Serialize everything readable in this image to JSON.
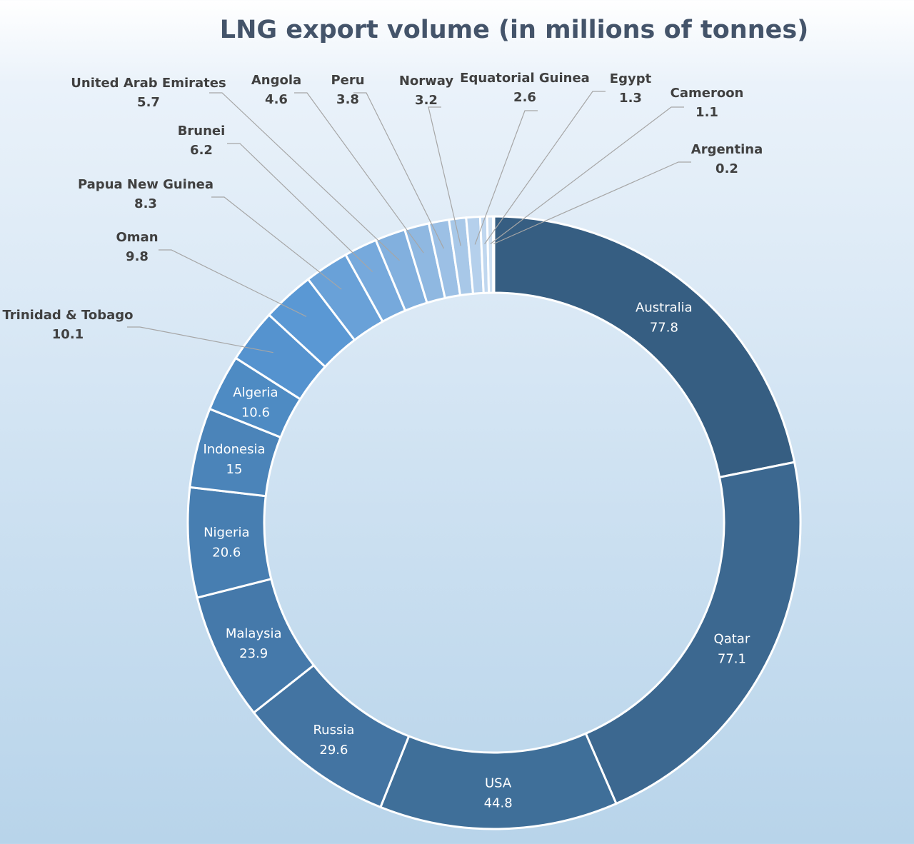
{
  "chart_data": {
    "type": "donut",
    "title": "LNG export volume (in millions of tonnes)",
    "categories": [
      "Australia",
      "Qatar",
      "USA",
      "Russia",
      "Malaysia",
      "Nigeria",
      "Indonesia",
      "Algeria",
      "Trinidad & Tobago",
      "Oman",
      "Papua New Guinea",
      "Brunei",
      "United Arab Emirates",
      "Angola",
      "Peru",
      "Norway",
      "Equatorial Guinea",
      "Egypt",
      "Cameroon",
      "Argentina"
    ],
    "values": [
      77.8,
      77.1,
      44.8,
      29.6,
      23.9,
      20.6,
      15,
      10.6,
      10.1,
      9.8,
      8.3,
      6.2,
      5.7,
      4.6,
      3.8,
      3.2,
      2.6,
      1.3,
      1.1,
      0.2
    ],
    "value_labels": [
      "77.8",
      "77.1",
      "44.8",
      "29.6",
      "23.9",
      "20.6",
      "15",
      "10.6",
      "10.1",
      "9.8",
      "8.3",
      "6.2",
      "5.7",
      "4.6",
      "3.8",
      "3.2",
      "2.6",
      "1.3",
      "1.1",
      "0.2"
    ],
    "colors": [
      "#365e82",
      "#3c6890",
      "#3f6f99",
      "#4374a2",
      "#4579aa",
      "#477eb1",
      "#4b84b9",
      "#4e8bc3",
      "#5593cf",
      "#5a98d4",
      "#69a1d8",
      "#76a9dc",
      "#82b0de",
      "#8fb8e1",
      "#9cc0e5",
      "#a8c8e8",
      "#b5d0ec",
      "#c0d7ef",
      "#ccdff2",
      "#d8e7f5"
    ],
    "legend": "none",
    "data_labels": "category name and value"
  }
}
